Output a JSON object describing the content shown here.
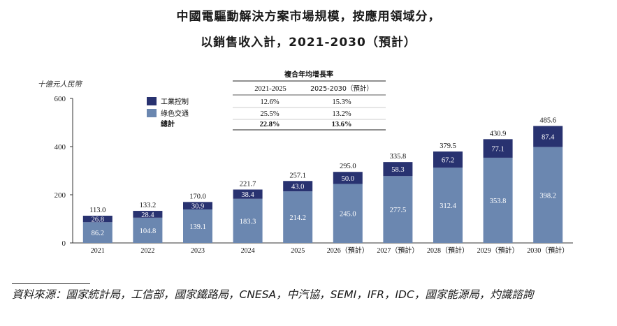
{
  "title_line1": "中國電驅動解決方案市場規模，按應用領域分，",
  "title_line2": "以銷售收入計，2021-2030（預計）",
  "source": "資料來源：國家統計局，工信部，國家鐵路局，CNESA，中汽協，SEMI，IFR，IDC，國家能源局，灼識諮詢",
  "colors": {
    "industrial": "#283270",
    "green": "#6b87b0",
    "axis": "#333333"
  },
  "legend": [
    {
      "name": "工業控制",
      "color": "#283270"
    },
    {
      "name": "綠色交通",
      "color": "#6b87b0"
    }
  ],
  "cagr_table": {
    "title": "複合年均增長率",
    "headers": [
      "2021-2025",
      "2025-2030（預計）"
    ],
    "rows": [
      {
        "label": "工業控制",
        "values": [
          "12.6%",
          "15.3%"
        ]
      },
      {
        "label": "綠色交通",
        "values": [
          "25.5%",
          "13.2%"
        ]
      },
      {
        "label": "總計",
        "values": [
          "22.8%",
          "13.6%"
        ]
      }
    ]
  },
  "chart_data": {
    "type": "bar",
    "stacked": true,
    "ylabel": "十億元人民幣",
    "ylim": [
      0,
      600
    ],
    "yticks": [
      0,
      200,
      400,
      600
    ],
    "categories": [
      "2021",
      "2022",
      "2023",
      "2024",
      "2025",
      "2026（預計）",
      "2027（預計）",
      "2028（預計）",
      "2029（預計）",
      "2030（預計）"
    ],
    "series": [
      {
        "name": "綠色交通",
        "values": [
          86.2,
          104.8,
          139.1,
          183.3,
          214.2,
          245.0,
          277.5,
          312.4,
          353.8,
          398.2
        ]
      },
      {
        "name": "工業控制",
        "values": [
          26.8,
          28.4,
          30.9,
          38.4,
          43.0,
          50.0,
          58.3,
          67.2,
          77.1,
          87.4
        ]
      }
    ],
    "totals": [
      "113.0",
      "133.2",
      "170.0",
      "221.7",
      "257.1",
      "295.0",
      "335.8",
      "379.5",
      "430.9",
      "485.6"
    ],
    "value_labels": {
      "綠色交通": [
        "86.2",
        "104.8",
        "139.1",
        "183.3",
        "214.2",
        "245.0",
        "277.5",
        "312.4",
        "353.8",
        "398.2"
      ],
      "工業控制": [
        "26.8",
        "28.4",
        "30.9",
        "38.4",
        "43.0",
        "50.0",
        "58.3",
        "67.2",
        "77.1",
        "87.4"
      ]
    }
  }
}
